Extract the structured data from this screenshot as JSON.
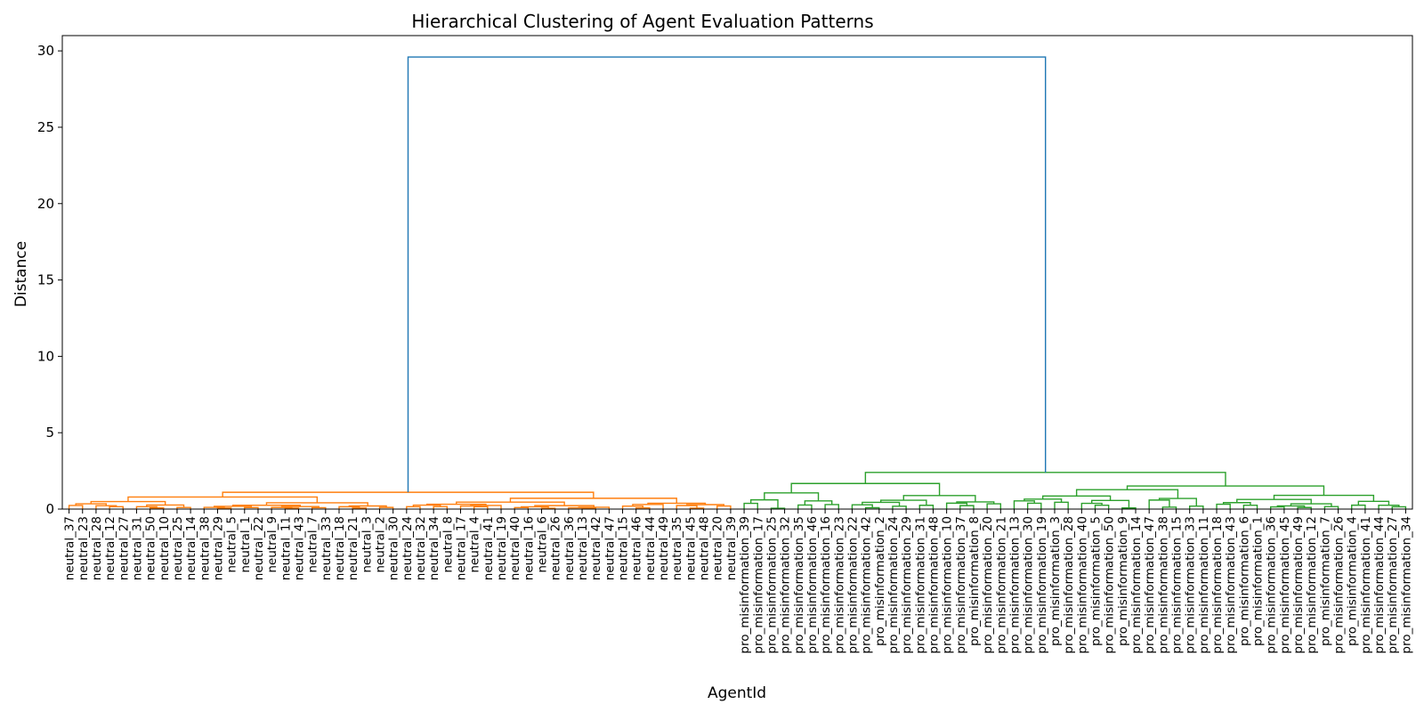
{
  "chart_data": {
    "type": "dendrogram",
    "title": "Hierarchical Clustering of Agent Evaluation Patterns",
    "xlabel": "AgentId",
    "ylabel": "Distance",
    "ylim": [
      0,
      31
    ],
    "yticks": [
      0,
      5,
      10,
      15,
      20,
      25,
      30
    ],
    "grid": false,
    "colors": {
      "cluster_neutral": "#ff7f0e",
      "cluster_pro": "#2ca02c",
      "root": "#1f77b4"
    },
    "leaves": [
      "neutral_37",
      "neutral_23",
      "neutral_28",
      "neutral_12",
      "neutral_27",
      "neutral_31",
      "neutral_50",
      "neutral_10",
      "neutral_25",
      "neutral_14",
      "neutral_38",
      "neutral_29",
      "neutral_5",
      "neutral_1",
      "neutral_22",
      "neutral_9",
      "neutral_11",
      "neutral_43",
      "neutral_7",
      "neutral_33",
      "neutral_18",
      "neutral_21",
      "neutral_3",
      "neutral_2",
      "neutral_30",
      "neutral_24",
      "neutral_32",
      "neutral_34",
      "neutral_8",
      "neutral_17",
      "neutral_4",
      "neutral_41",
      "neutral_19",
      "neutral_40",
      "neutral_16",
      "neutral_6",
      "neutral_26",
      "neutral_36",
      "neutral_13",
      "neutral_42",
      "neutral_47",
      "neutral_15",
      "neutral_46",
      "neutral_44",
      "neutral_49",
      "neutral_35",
      "neutral_45",
      "neutral_48",
      "neutral_20",
      "neutral_39",
      "pro_misinformation_39",
      "pro_misinformation_17",
      "pro_misinformation_25",
      "pro_misinformation_32",
      "pro_misinformation_35",
      "pro_misinformation_46",
      "pro_misinformation_16",
      "pro_misinformation_23",
      "pro_misinformation_22",
      "pro_misinformation_42",
      "pro_misinformation_2",
      "pro_misinformation_24",
      "pro_misinformation_29",
      "pro_misinformation_31",
      "pro_misinformation_48",
      "pro_misinformation_10",
      "pro_misinformation_37",
      "pro_misinformation_8",
      "pro_misinformation_20",
      "pro_misinformation_21",
      "pro_misinformation_13",
      "pro_misinformation_30",
      "pro_misinformation_19",
      "pro_misinformation_3",
      "pro_misinformation_28",
      "pro_misinformation_40",
      "pro_misinformation_5",
      "pro_misinformation_50",
      "pro_misinformation_9",
      "pro_misinformation_14",
      "pro_misinformation_47",
      "pro_misinformation_38",
      "pro_misinformation_15",
      "pro_misinformation_33",
      "pro_misinformation_11",
      "pro_misinformation_18",
      "pro_misinformation_43",
      "pro_misinformation_6",
      "pro_misinformation_1",
      "pro_misinformation_36",
      "pro_misinformation_45",
      "pro_misinformation_49",
      "pro_misinformation_12",
      "pro_misinformation_7",
      "pro_misinformation_26",
      "pro_misinformation_4",
      "pro_misinformation_41",
      "pro_misinformation_44",
      "pro_misinformation_27",
      "pro_misinformation_34"
    ],
    "merges": [
      {
        "left": 0,
        "right": 49,
        "height": 1.1
      },
      {
        "left": 50,
        "right": 99,
        "height": 2.4
      },
      {
        "left": 0,
        "right": 99,
        "height": 29.6
      }
    ]
  }
}
